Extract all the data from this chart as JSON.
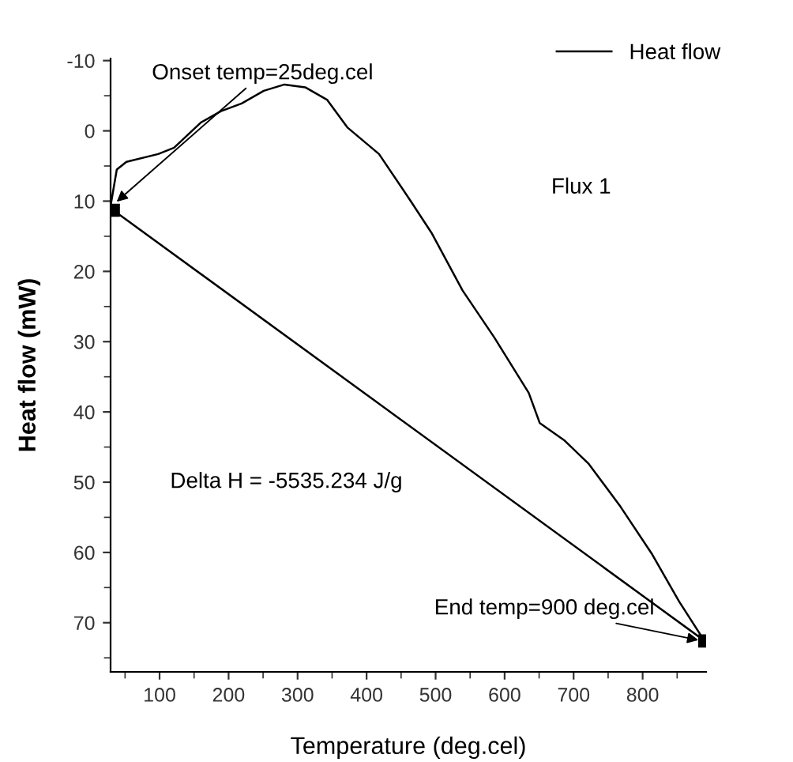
{
  "chart_data": {
    "type": "line",
    "xlabel": "Temperature (deg.cel)",
    "ylabel": "Heat flow (mW)",
    "xlim": [
      29,
      892
    ],
    "ylim": [
      77,
      -10.3
    ],
    "xticks": [
      100,
      200,
      300,
      400,
      500,
      600,
      700,
      800
    ],
    "yticks": [
      -10,
      0,
      10,
      20,
      30,
      40,
      50,
      60,
      70
    ],
    "grid": false,
    "legend": "top right",
    "line_style": "solid",
    "series": [
      {
        "name": "Heat flow",
        "color": "#000000",
        "marker": "none",
        "x": [
          29,
          38,
          52,
          98,
          121,
          160,
          189,
          219,
          251,
          281,
          311,
          343,
          372,
          418,
          464,
          494,
          539,
          585,
          635,
          651,
          686,
          722,
          768,
          814,
          853,
          887
        ],
        "values": [
          10.7,
          5.5,
          4.4,
          3.3,
          2.4,
          -1.2,
          -2.8,
          -3.9,
          -5.7,
          -6.6,
          -6.2,
          -4.4,
          -0.5,
          3.3,
          10,
          14.5,
          22.7,
          29.4,
          37.3,
          41.6,
          44,
          47.4,
          53.5,
          60.3,
          67,
          72.2
        ]
      },
      {
        "color": "#000000",
        "marker": "square",
        "x": [
          33,
          890
        ],
        "values": [
          11.3,
          72.6
        ]
      }
    ],
    "annotations": [
      {
        "text": "Onset temp=25deg.cel",
        "x": 33,
        "y": 10.5
      },
      {
        "text": "End temp=900 deg.cel",
        "x": 887,
        "y": 72.6
      },
      "Flux 1",
      "Delta H = -5535.234 J/g"
    ]
  }
}
